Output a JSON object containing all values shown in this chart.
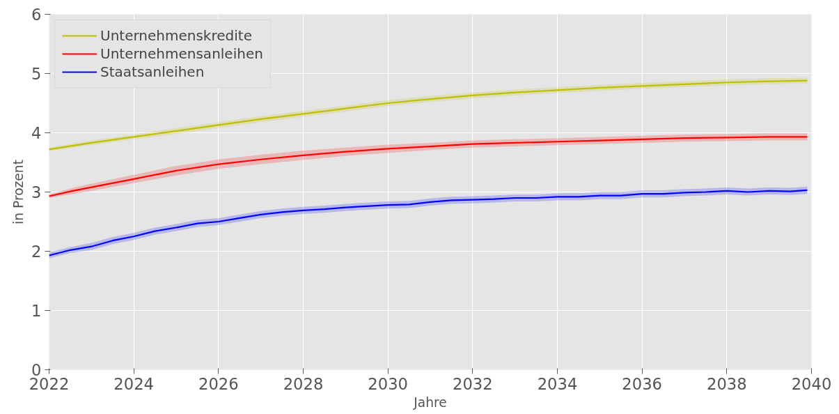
{
  "chart_data": {
    "type": "line",
    "xlabel": "Jahre",
    "ylabel": "in Prozent",
    "xlim": [
      2022,
      2040
    ],
    "ylim": [
      0,
      6
    ],
    "xticks": [
      2022,
      2024,
      2026,
      2028,
      2030,
      2032,
      2034,
      2036,
      2038,
      2040
    ],
    "yticks": [
      0,
      1,
      2,
      3,
      4,
      5,
      6
    ],
    "grid": true,
    "legend": "top left",
    "line_style": "solid",
    "marker": "none",
    "series": [
      {
        "name": "Unternehmenskredite",
        "color": "#bfbf00",
        "x": [
          2022,
          2023,
          2024,
          2025,
          2026,
          2027,
          2028,
          2029,
          2030,
          2031,
          2032,
          2033,
          2034,
          2035,
          2036,
          2037,
          2038,
          2039,
          2039.9
        ],
        "values": [
          3.72,
          3.83,
          3.93,
          4.03,
          4.13,
          4.23,
          4.32,
          4.41,
          4.5,
          4.57,
          4.63,
          4.68,
          4.72,
          4.76,
          4.79,
          4.82,
          4.85,
          4.87,
          4.88
        ],
        "lower": [
          3.69,
          3.79,
          3.89,
          3.98,
          4.08,
          4.18,
          4.27,
          4.36,
          4.45,
          4.52,
          4.58,
          4.63,
          4.67,
          4.71,
          4.74,
          4.77,
          4.8,
          4.82,
          4.83
        ],
        "upper": [
          3.75,
          3.87,
          3.97,
          4.08,
          4.18,
          4.28,
          4.37,
          4.46,
          4.55,
          4.62,
          4.68,
          4.73,
          4.77,
          4.81,
          4.84,
          4.87,
          4.9,
          4.92,
          4.93
        ]
      },
      {
        "name": "Unternehmensanleihen",
        "color": "#ff0000",
        "x": [
          2022,
          2022.5,
          2023,
          2024,
          2025,
          2026,
          2027,
          2028,
          2029,
          2030,
          2031,
          2032,
          2033,
          2034,
          2035,
          2036,
          2037,
          2038,
          2039,
          2039.9
        ],
        "values": [
          2.93,
          3.01,
          3.08,
          3.22,
          3.36,
          3.47,
          3.55,
          3.62,
          3.68,
          3.73,
          3.77,
          3.81,
          3.83,
          3.85,
          3.87,
          3.89,
          3.91,
          3.92,
          3.93,
          3.93
        ],
        "lower": [
          2.9,
          2.96,
          3.02,
          3.15,
          3.28,
          3.39,
          3.47,
          3.54,
          3.61,
          3.66,
          3.71,
          3.75,
          3.77,
          3.79,
          3.81,
          3.83,
          3.85,
          3.86,
          3.87,
          3.87
        ],
        "upper": [
          2.96,
          3.06,
          3.14,
          3.29,
          3.44,
          3.55,
          3.63,
          3.7,
          3.75,
          3.8,
          3.83,
          3.87,
          3.89,
          3.91,
          3.93,
          3.95,
          3.97,
          3.98,
          3.99,
          3.99
        ]
      },
      {
        "name": "Staatsanleihen",
        "color": "#0000ff",
        "x": [
          2022,
          2022.5,
          2023,
          2023.5,
          2024,
          2024.5,
          2025,
          2025.5,
          2026,
          2026.5,
          2027,
          2027.5,
          2028,
          2028.5,
          2029,
          2029.5,
          2030,
          2030.5,
          2031,
          2031.5,
          2032,
          2032.5,
          2033,
          2033.5,
          2034,
          2034.5,
          2035,
          2035.5,
          2036,
          2036.5,
          2037,
          2037.5,
          2038,
          2038.5,
          2039,
          2039.5,
          2039.9
        ],
        "values": [
          1.93,
          2.02,
          2.08,
          2.18,
          2.25,
          2.34,
          2.4,
          2.47,
          2.5,
          2.56,
          2.62,
          2.66,
          2.69,
          2.71,
          2.74,
          2.76,
          2.78,
          2.79,
          2.83,
          2.86,
          2.87,
          2.88,
          2.9,
          2.9,
          2.92,
          2.92,
          2.94,
          2.94,
          2.97,
          2.97,
          2.99,
          3.0,
          3.02,
          3.0,
          3.02,
          3.01,
          3.03
        ],
        "lower": [
          1.88,
          1.97,
          2.02,
          2.12,
          2.19,
          2.28,
          2.34,
          2.41,
          2.44,
          2.5,
          2.56,
          2.6,
          2.63,
          2.65,
          2.68,
          2.7,
          2.72,
          2.73,
          2.77,
          2.8,
          2.81,
          2.82,
          2.84,
          2.84,
          2.86,
          2.86,
          2.88,
          2.88,
          2.91,
          2.91,
          2.93,
          2.94,
          2.96,
          2.94,
          2.96,
          2.95,
          2.97
        ],
        "upper": [
          1.98,
          2.07,
          2.14,
          2.24,
          2.31,
          2.4,
          2.46,
          2.53,
          2.56,
          2.62,
          2.68,
          2.72,
          2.75,
          2.77,
          2.8,
          2.82,
          2.84,
          2.85,
          2.89,
          2.92,
          2.93,
          2.94,
          2.96,
          2.96,
          2.98,
          2.98,
          3.0,
          3.0,
          3.03,
          3.03,
          3.05,
          3.06,
          3.08,
          3.06,
          3.08,
          3.07,
          3.09
        ]
      }
    ]
  }
}
